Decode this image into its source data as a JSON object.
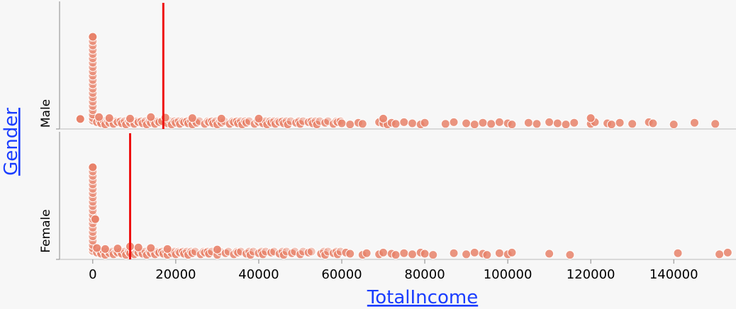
{
  "chart_data": {
    "type": "scatter",
    "title": "",
    "xlabel": "TotalIncome",
    "ylabel": "Gender",
    "xlim": [
      -8000,
      155000
    ],
    "x_ticks": [
      0,
      20000,
      40000,
      60000,
      80000,
      100000,
      120000,
      140000
    ],
    "x_tick_labels": [
      "0",
      "20000",
      "40000",
      "60000",
      "80000",
      "100000",
      "120000",
      "140000"
    ],
    "point_color": "#e8826a",
    "marker_color": "#ee1111",
    "panels": [
      {
        "label": "Male",
        "marker_x": 17000,
        "clusters": [
          {
            "x": 0,
            "heights": [
              0.03,
              0.06,
              0.1,
              0.15,
              0.2,
              0.25,
              0.3,
              0.35,
              0.4,
              0.45,
              0.5,
              0.55,
              0.6,
              0.65,
              0.7,
              0.75,
              0.8,
              0.85,
              0.9,
              0.95,
              1.0
            ]
          },
          {
            "x": -3000,
            "heights": [
              0.05
            ]
          }
        ],
        "points": [
          1000,
          2000,
          3000,
          4000,
          5000,
          6000,
          7000,
          8000,
          9000,
          10000,
          11000,
          12000,
          13000,
          14000,
          15000,
          16000,
          18000,
          19000,
          20000,
          21000,
          22000,
          23000,
          24000,
          25000,
          27000,
          28000,
          29000,
          30000,
          31000,
          33000,
          34000,
          35000,
          36000,
          37000,
          39000,
          40000,
          41000,
          42000,
          43000,
          44000,
          45000,
          46000,
          47000,
          49000,
          50000,
          52000,
          53000,
          54000,
          56000,
          58000,
          59000,
          60000,
          62000,
          64000,
          65000,
          69000,
          70000,
          71000,
          72000,
          73000,
          75000,
          77000,
          79000,
          80000,
          85000,
          87000,
          90000,
          92000,
          94000,
          96000,
          98000,
          100000,
          101000,
          105000,
          107000,
          110000,
          112000,
          114000,
          116000,
          120000,
          121000,
          124000,
          125000,
          127000,
          130000,
          134000,
          135000,
          140000,
          145000,
          150000
        ],
        "raised_points": [
          {
            "x": 1500,
            "h": 0.12
          },
          {
            "x": 4000,
            "h": 0.1
          },
          {
            "x": 9000,
            "h": 0.09
          },
          {
            "x": 14000,
            "h": 0.12
          },
          {
            "x": 17500,
            "h": 0.11
          },
          {
            "x": 24000,
            "h": 0.1
          },
          {
            "x": 31000,
            "h": 0.09
          },
          {
            "x": 40000,
            "h": 0.09
          },
          {
            "x": 70000,
            "h": 0.09
          },
          {
            "x": 120000,
            "h": 0.1
          }
        ]
      },
      {
        "label": "Female",
        "marker_x": 9000,
        "clusters": [
          {
            "x": 0,
            "heights": [
              0.03,
              0.06,
              0.1,
              0.15,
              0.2,
              0.25,
              0.3,
              0.35,
              0.4,
              0.45,
              0.5,
              0.55,
              0.6,
              0.65,
              0.7,
              0.75,
              0.8,
              0.85,
              0.9,
              0.95,
              1.0
            ]
          },
          {
            "x": 600,
            "heights": [
              0.4
            ]
          }
        ],
        "points": [
          1000,
          2000,
          3000,
          4000,
          5000,
          6000,
          7000,
          8000,
          9000,
          10000,
          11000,
          12000,
          13000,
          14000,
          15000,
          16000,
          17000,
          18000,
          19000,
          20000,
          21000,
          22000,
          23000,
          24000,
          26000,
          27000,
          28000,
          30000,
          32000,
          34000,
          35000,
          37000,
          38000,
          40000,
          41000,
          43000,
          45000,
          46000,
          48000,
          50000,
          52000,
          55000,
          56000,
          58000,
          59000,
          61000,
          62000,
          65000,
          66000,
          69000,
          70000,
          72000,
          73000,
          75000,
          77000,
          79000,
          80000,
          82000,
          87000,
          90000,
          92000,
          94000,
          95000,
          98000,
          100000,
          101000,
          110000,
          115000,
          141000,
          151000,
          153000
        ],
        "raised_points": [
          {
            "x": 1000,
            "h": 0.11
          },
          {
            "x": 3000,
            "h": 0.09
          },
          {
            "x": 6000,
            "h": 0.1
          },
          {
            "x": 9000,
            "h": 0.14
          },
          {
            "x": 11000,
            "h": 0.12
          },
          {
            "x": 14000,
            "h": 0.11
          },
          {
            "x": 18000,
            "h": 0.09
          },
          {
            "x": 30000,
            "h": 0.08
          }
        ]
      }
    ]
  }
}
